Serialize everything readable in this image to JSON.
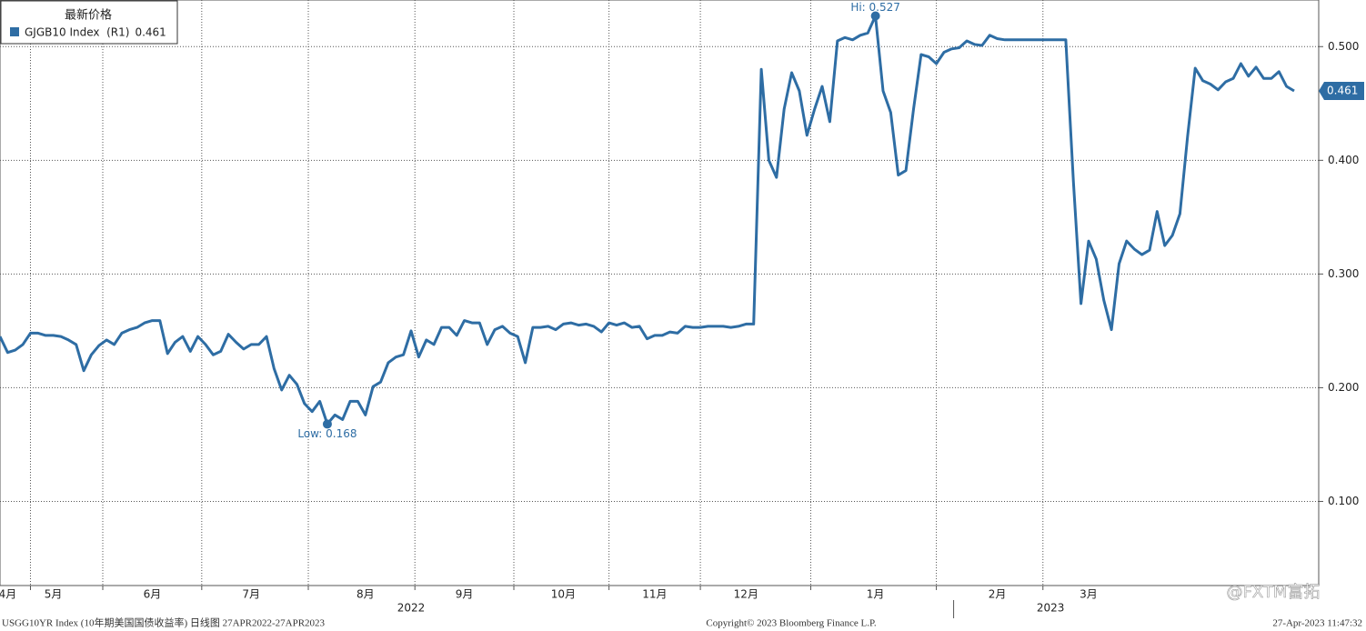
{
  "chart_data": {
    "type": "line",
    "legend_title": "最新价格",
    "categories": [
      null,
      "4月",
      null,
      null,
      null,
      null,
      null,
      "5月",
      null,
      null,
      null,
      null,
      null,
      null,
      null,
      null,
      null,
      null,
      null,
      null,
      "6月",
      null,
      null,
      null,
      null,
      null,
      null,
      null,
      null,
      null,
      null,
      null,
      null,
      "7月",
      null,
      null,
      null,
      null,
      null,
      null,
      null,
      null,
      null,
      null,
      null,
      null,
      null,
      null,
      "8月",
      null,
      null,
      null,
      null,
      null,
      null,
      null,
      null,
      null,
      null,
      null,
      null,
      "9月",
      null,
      null,
      null,
      null,
      null,
      null,
      null,
      null,
      null,
      null,
      null,
      null,
      "10月",
      null,
      null,
      null,
      null,
      null,
      null,
      null,
      null,
      null,
      null,
      null,
      "11月",
      null,
      null,
      null,
      null,
      null,
      null,
      null,
      null,
      null,
      null,
      null,
      "12月",
      null,
      null,
      null,
      null,
      null,
      null,
      null,
      null,
      null,
      null,
      null,
      null,
      null,
      null,
      null,
      null,
      "1月",
      null,
      null,
      null,
      null,
      null,
      null,
      null,
      null,
      null,
      null,
      null,
      null,
      null,
      null,
      null,
      "2月",
      null,
      null,
      null,
      null,
      null,
      null,
      null,
      null,
      null,
      null,
      null,
      "3月",
      null,
      null,
      null,
      null,
      null,
      null,
      null,
      null,
      null,
      null,
      null,
      null,
      null,
      null,
      null,
      null,
      null,
      null,
      null,
      null,
      null,
      null,
      null,
      null,
      null,
      null,
      null
    ],
    "year_labels": [
      null,
      null,
      null,
      null,
      null,
      null,
      null,
      null,
      null,
      null,
      null,
      null,
      null,
      null,
      null,
      null,
      null,
      null,
      null,
      null,
      null,
      null,
      null,
      null,
      null,
      null,
      null,
      null,
      null,
      null,
      null,
      null,
      null,
      null,
      null,
      null,
      null,
      null,
      null,
      null,
      null,
      null,
      null,
      null,
      null,
      null,
      null,
      null,
      null,
      null,
      null,
      null,
      null,
      null,
      "2022",
      null,
      null,
      null,
      null,
      null,
      null,
      null,
      null,
      null,
      null,
      null,
      null,
      null,
      null,
      null,
      null,
      null,
      null,
      null,
      null,
      null,
      null,
      null,
      null,
      null,
      null,
      null,
      null,
      null,
      null,
      null,
      null,
      null,
      null,
      null,
      null,
      null,
      null,
      null,
      null,
      null,
      null,
      null,
      null,
      null,
      null,
      null,
      null,
      null,
      null,
      null,
      null,
      null,
      null,
      null,
      null,
      null,
      null,
      null,
      null,
      null,
      null,
      null,
      null,
      null,
      null,
      null,
      null,
      null,
      null,
      null,
      null,
      null,
      null,
      null,
      null,
      null,
      null,
      null,
      null,
      null,
      null,
      null,
      "2023",
      null,
      null,
      null,
      null,
      null,
      null,
      null,
      null,
      null,
      null,
      null,
      null,
      null,
      null,
      null,
      null,
      null,
      null,
      null,
      null,
      null,
      null,
      null,
      null,
      null,
      null,
      null,
      null,
      null,
      null,
      null,
      null
    ],
    "series": [
      {
        "name": "GJGB10 Index  (R1)",
        "color": "#2e6da4",
        "values": [
          0.245,
          0.231,
          0.233,
          0.238,
          0.248,
          0.248,
          0.246,
          0.246,
          0.245,
          0.242,
          0.238,
          0.215,
          0.229,
          0.237,
          0.242,
          0.238,
          0.248,
          0.251,
          0.253,
          0.257,
          0.259,
          0.259,
          0.23,
          0.24,
          0.245,
          0.232,
          0.245,
          0.238,
          0.229,
          0.232,
          0.247,
          0.24,
          0.234,
          0.238,
          0.238,
          0.245,
          0.217,
          0.198,
          0.211,
          0.203,
          0.186,
          0.179,
          0.188,
          0.168,
          0.176,
          0.172,
          0.188,
          0.188,
          0.176,
          0.201,
          0.205,
          0.222,
          0.227,
          0.229,
          0.25,
          0.227,
          0.242,
          0.238,
          0.253,
          0.253,
          0.246,
          0.259,
          0.257,
          0.257,
          0.238,
          0.251,
          0.254,
          0.248,
          0.245,
          0.222,
          0.253,
          0.253,
          0.254,
          0.251,
          0.256,
          0.257,
          0.255,
          0.256,
          0.254,
          0.249,
          0.257,
          0.255,
          0.257,
          0.253,
          0.254,
          0.243,
          0.246,
          0.246,
          0.249,
          0.248,
          0.254,
          0.253,
          0.253,
          0.254,
          0.254,
          0.254,
          0.253,
          0.254,
          0.256,
          0.256,
          0.48,
          0.4,
          0.385,
          0.445,
          0.477,
          0.461,
          0.422,
          0.445,
          0.465,
          0.434,
          0.505,
          0.508,
          0.506,
          0.51,
          0.512,
          0.527,
          0.461,
          0.442,
          0.387,
          0.391,
          0.445,
          0.493,
          0.491,
          0.485,
          0.495,
          0.498,
          0.499,
          0.505,
          0.502,
          0.501,
          0.51,
          0.507,
          0.506,
          0.506,
          0.506,
          0.506,
          0.506,
          0.506,
          0.506,
          0.506,
          0.506,
          0.381,
          0.274,
          0.329,
          0.313,
          0.277,
          0.251,
          0.309,
          0.329,
          0.322,
          0.317,
          0.321,
          0.355,
          0.325,
          0.334,
          0.353,
          0.421,
          0.481,
          0.47,
          0.467,
          0.462,
          0.469,
          0.472,
          0.485,
          0.474,
          0.482,
          0.472,
          0.472,
          0.478,
          0.465,
          0.461
        ]
      }
    ],
    "annotations": {
      "high": "Hi: 0.527",
      "low": "Low: 0.168"
    },
    "ylim": [
      0.026,
      0.541
    ],
    "yticks": [
      {
        "value": 0.1,
        "label": "0.100"
      },
      {
        "value": 0.2,
        "label": "0.200"
      },
      {
        "value": 0.3,
        "label": "0.300"
      },
      {
        "value": 0.4,
        "label": "0.400"
      },
      {
        "value": 0.5,
        "label": "0.500"
      }
    ],
    "grid": true,
    "footer": {
      "left": "USGG10YR Index (10年期美国国债收益率)  日线图 27APR2022-27APR2023",
      "center": "Copyright© 2023 Bloomberg Finance L.P.",
      "right": "27-Apr-2023 11:47:32"
    },
    "watermark": "@FXTM富拓"
  }
}
